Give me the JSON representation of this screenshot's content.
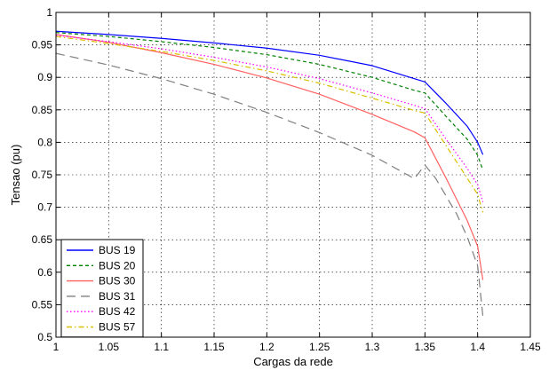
{
  "chart_data": {
    "type": "line",
    "title": "",
    "xlabel": "Cargas da rede",
    "ylabel": "Tensao (pu)",
    "xlim": [
      1,
      1.45
    ],
    "ylim": [
      0.5,
      1
    ],
    "xticks": [
      1,
      1.05,
      1.1,
      1.15,
      1.2,
      1.25,
      1.3,
      1.35,
      1.4,
      1.45
    ],
    "yticks": [
      0.5,
      0.55,
      0.6,
      0.65,
      0.7,
      0.75,
      0.8,
      0.85,
      0.9,
      0.95,
      1
    ],
    "xtick_labels": [
      "1",
      "1.05",
      "1.1",
      "1.15",
      "1.2",
      "1.25",
      "1.3",
      "1.35",
      "1.4",
      "1.45"
    ],
    "ytick_labels": [
      "0.5",
      "0.55",
      "0.6",
      "0.65",
      "0.7",
      "0.75",
      "0.8",
      "0.85",
      "0.9",
      "0.95",
      "1"
    ],
    "grid": true,
    "legend_position": "bottom-left",
    "series": [
      {
        "name": "BUS 19",
        "color": "#0000ff",
        "dash": "solid",
        "points": [
          [
            1,
            0.971
          ],
          [
            1.05,
            0.966
          ],
          [
            1.1,
            0.96
          ],
          [
            1.15,
            0.953
          ],
          [
            1.2,
            0.945
          ],
          [
            1.25,
            0.934
          ],
          [
            1.3,
            0.918
          ],
          [
            1.34,
            0.898
          ],
          [
            1.35,
            0.893
          ],
          [
            1.37,
            0.86
          ],
          [
            1.39,
            0.825
          ],
          [
            1.4,
            0.8
          ],
          [
            1.405,
            0.781
          ]
        ]
      },
      {
        "name": "BUS 20",
        "color": "#008000",
        "dash": "dashed",
        "points": [
          [
            1,
            0.969
          ],
          [
            1.05,
            0.963
          ],
          [
            1.1,
            0.955
          ],
          [
            1.15,
            0.946
          ],
          [
            1.2,
            0.935
          ],
          [
            1.25,
            0.92
          ],
          [
            1.3,
            0.9
          ],
          [
            1.34,
            0.88
          ],
          [
            1.35,
            0.876
          ],
          [
            1.37,
            0.84
          ],
          [
            1.39,
            0.805
          ],
          [
            1.4,
            0.78
          ],
          [
            1.405,
            0.757
          ]
        ]
      },
      {
        "name": "BUS 30",
        "color": "#ff6060",
        "dash": "solid",
        "points": [
          [
            1,
            0.966
          ],
          [
            1.05,
            0.954
          ],
          [
            1.1,
            0.938
          ],
          [
            1.15,
            0.92
          ],
          [
            1.2,
            0.899
          ],
          [
            1.25,
            0.874
          ],
          [
            1.3,
            0.843
          ],
          [
            1.34,
            0.816
          ],
          [
            1.35,
            0.807
          ],
          [
            1.37,
            0.745
          ],
          [
            1.39,
            0.68
          ],
          [
            1.4,
            0.64
          ],
          [
            1.405,
            0.588
          ]
        ]
      },
      {
        "name": "BUS 31",
        "color": "#808080",
        "dash": "longdash",
        "points": [
          [
            1,
            0.937
          ],
          [
            1.05,
            0.919
          ],
          [
            1.1,
            0.898
          ],
          [
            1.15,
            0.874
          ],
          [
            1.2,
            0.846
          ],
          [
            1.25,
            0.815
          ],
          [
            1.3,
            0.78
          ],
          [
            1.34,
            0.744
          ],
          [
            1.35,
            0.765
          ],
          [
            1.36,
            0.745
          ],
          [
            1.38,
            0.69
          ],
          [
            1.39,
            0.655
          ],
          [
            1.4,
            0.61
          ],
          [
            1.405,
            0.532
          ]
        ]
      },
      {
        "name": "BUS 42",
        "color": "#ff00ff",
        "dash": "dotted",
        "points": [
          [
            1,
            0.965
          ],
          [
            1.05,
            0.955
          ],
          [
            1.1,
            0.944
          ],
          [
            1.15,
            0.931
          ],
          [
            1.2,
            0.916
          ],
          [
            1.25,
            0.898
          ],
          [
            1.3,
            0.876
          ],
          [
            1.34,
            0.857
          ],
          [
            1.35,
            0.852
          ],
          [
            1.37,
            0.805
          ],
          [
            1.39,
            0.76
          ],
          [
            1.4,
            0.735
          ],
          [
            1.405,
            0.708
          ]
        ]
      },
      {
        "name": "BUS 57",
        "color": "#d8c000",
        "dash": "dashdot",
        "points": [
          [
            1,
            0.963
          ],
          [
            1.05,
            0.952
          ],
          [
            1.1,
            0.94
          ],
          [
            1.15,
            0.926
          ],
          [
            1.2,
            0.91
          ],
          [
            1.25,
            0.891
          ],
          [
            1.3,
            0.868
          ],
          [
            1.34,
            0.849
          ],
          [
            1.35,
            0.845
          ],
          [
            1.37,
            0.795
          ],
          [
            1.39,
            0.745
          ],
          [
            1.4,
            0.72
          ],
          [
            1.405,
            0.692
          ]
        ]
      }
    ]
  }
}
